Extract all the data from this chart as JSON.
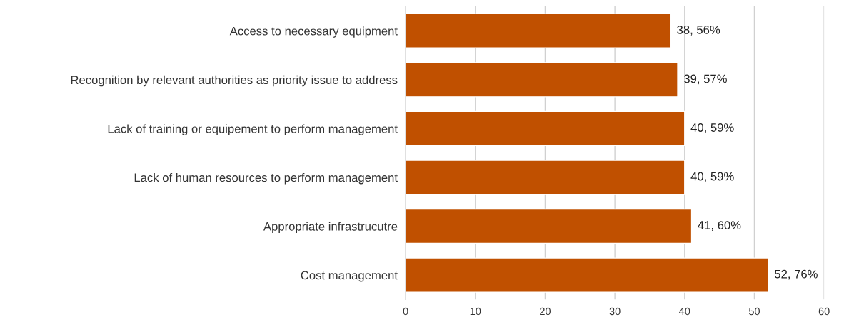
{
  "chart_data": {
    "type": "bar",
    "orientation": "horizontal",
    "categories": [
      "Access to necessary equipment",
      "Recognition by relevant authorities as priority issue to address",
      "Lack of training or equipement to perform management",
      "Lack of human resources to perform management",
      "Appropriate infrastrucutre",
      "Cost management"
    ],
    "values": [
      38,
      39,
      40,
      40,
      41,
      52
    ],
    "value_labels": [
      "38, 56%",
      "39, 57%",
      "40, 59%",
      "40, 59%",
      "41, 60%",
      "52, 76%"
    ],
    "color": "#c05000",
    "xlim": [
      0,
      60
    ],
    "xticks": [
      0,
      10,
      20,
      30,
      40,
      50,
      60
    ],
    "grid": "x"
  }
}
